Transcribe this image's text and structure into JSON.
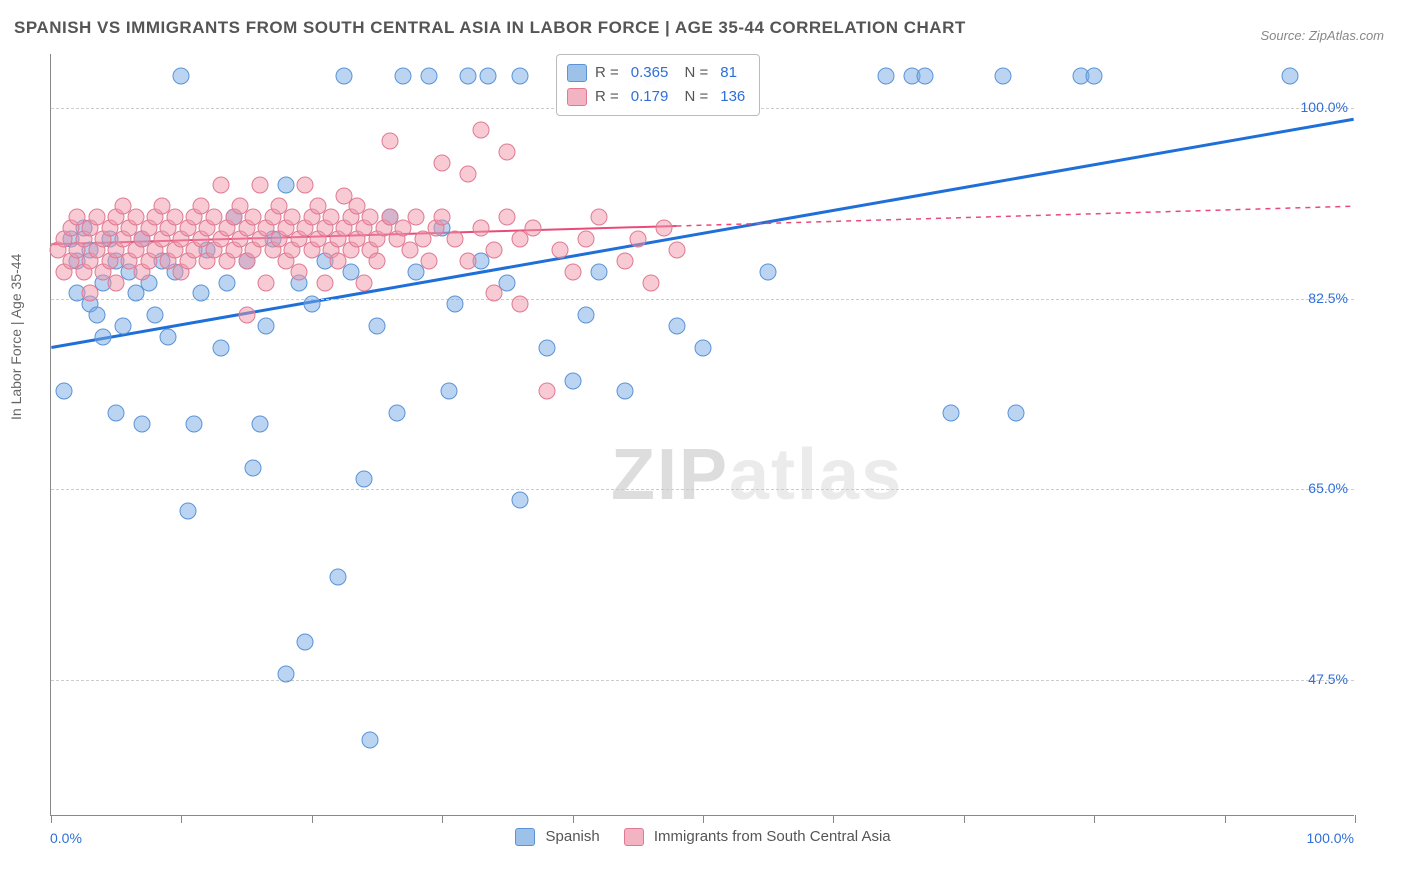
{
  "title": "SPANISH VS IMMIGRANTS FROM SOUTH CENTRAL ASIA IN LABOR FORCE | AGE 35-44 CORRELATION CHART",
  "source": "Source: ZipAtlas.com",
  "y_axis_label": "In Labor Force | Age 35-44",
  "watermark": "ZIPatlas",
  "chart": {
    "type": "scatter",
    "xlim": [
      0,
      100
    ],
    "ylim": [
      35,
      105
    ],
    "y_ticks": [
      {
        "value": 47.5,
        "label": "47.5%"
      },
      {
        "value": 65.0,
        "label": "65.0%"
      },
      {
        "value": 82.5,
        "label": "82.5%"
      },
      {
        "value": 100.0,
        "label": "100.0%"
      }
    ],
    "x_tick_positions": [
      0,
      10,
      20,
      30,
      40,
      50,
      60,
      70,
      80,
      90,
      100
    ],
    "x_tick_labels": {
      "left": "0.0%",
      "right": "100.0%"
    },
    "background_color": "#ffffff",
    "grid_color": "#cccccc",
    "axis_color": "#888888",
    "marker_size": 17,
    "series": [
      {
        "name": "Spanish",
        "color_fill": "rgba(120,170,230,0.5)",
        "color_stroke": "#5a94d6",
        "line_color": "#1f6fd8",
        "line_width": 3,
        "R": "0.365",
        "N": "81",
        "trend": {
          "x1": 0,
          "y1": 78,
          "x2": 100,
          "y2": 99,
          "dash_from_x": null
        },
        "points": [
          [
            1,
            74
          ],
          [
            1.5,
            88
          ],
          [
            2,
            86
          ],
          [
            2,
            83
          ],
          [
            2.5,
            89
          ],
          [
            3,
            87
          ],
          [
            3,
            82
          ],
          [
            3.5,
            81
          ],
          [
            4,
            84
          ],
          [
            4,
            79
          ],
          [
            4.5,
            88
          ],
          [
            5,
            86
          ],
          [
            5,
            72
          ],
          [
            5.5,
            80
          ],
          [
            6,
            85
          ],
          [
            6.5,
            83
          ],
          [
            7,
            71
          ],
          [
            7,
            88
          ],
          [
            7.5,
            84
          ],
          [
            8,
            81
          ],
          [
            8.5,
            86
          ],
          [
            9,
            79
          ],
          [
            9.5,
            85
          ],
          [
            10,
            103
          ],
          [
            10.5,
            63
          ],
          [
            11,
            71
          ],
          [
            11.5,
            83
          ],
          [
            12,
            87
          ],
          [
            13,
            78
          ],
          [
            13.5,
            84
          ],
          [
            14,
            90
          ],
          [
            15,
            86
          ],
          [
            15.5,
            67
          ],
          [
            16,
            71
          ],
          [
            16.5,
            80
          ],
          [
            17,
            88
          ],
          [
            18,
            93
          ],
          [
            18,
            48
          ],
          [
            19,
            84
          ],
          [
            19.5,
            51
          ],
          [
            20,
            82
          ],
          [
            21,
            86
          ],
          [
            22,
            57
          ],
          [
            22.5,
            103
          ],
          [
            23,
            85
          ],
          [
            24,
            66
          ],
          [
            24.5,
            42
          ],
          [
            25,
            80
          ],
          [
            26,
            90
          ],
          [
            26.5,
            72
          ],
          [
            27,
            103
          ],
          [
            28,
            85
          ],
          [
            29,
            103
          ],
          [
            30,
            89
          ],
          [
            30.5,
            74
          ],
          [
            31,
            82
          ],
          [
            32,
            103
          ],
          [
            33,
            86
          ],
          [
            33.5,
            103
          ],
          [
            35,
            84
          ],
          [
            36,
            64
          ],
          [
            36,
            103
          ],
          [
            38,
            78
          ],
          [
            40,
            75
          ],
          [
            41,
            81
          ],
          [
            42,
            85
          ],
          [
            44,
            74
          ],
          [
            46,
            103
          ],
          [
            48,
            80
          ],
          [
            50,
            78
          ],
          [
            52,
            103
          ],
          [
            55,
            85
          ],
          [
            64,
            103
          ],
          [
            66,
            103
          ],
          [
            67,
            103
          ],
          [
            69,
            72
          ],
          [
            73,
            103
          ],
          [
            74,
            72
          ],
          [
            79,
            103
          ],
          [
            80,
            103
          ],
          [
            95,
            103
          ]
        ]
      },
      {
        "name": "Immigrants from South Central Asia",
        "color_fill": "rgba(240,150,170,0.5)",
        "color_stroke": "#e07a93",
        "line_color": "#e84b7a",
        "line_width": 2,
        "R": "0.179",
        "N": "136",
        "trend": {
          "x1": 0,
          "y1": 87.5,
          "x2": 100,
          "y2": 91,
          "dash_from_x": 48
        },
        "points": [
          [
            0.5,
            87
          ],
          [
            1,
            88
          ],
          [
            1,
            85
          ],
          [
            1.5,
            89
          ],
          [
            1.5,
            86
          ],
          [
            2,
            87
          ],
          [
            2,
            90
          ],
          [
            2.5,
            88
          ],
          [
            2.5,
            85
          ],
          [
            3,
            89
          ],
          [
            3,
            86
          ],
          [
            3,
            83
          ],
          [
            3.5,
            87
          ],
          [
            3.5,
            90
          ],
          [
            4,
            88
          ],
          [
            4,
            85
          ],
          [
            4.5,
            89
          ],
          [
            4.5,
            86
          ],
          [
            5,
            87
          ],
          [
            5,
            90
          ],
          [
            5,
            84
          ],
          [
            5.5,
            88
          ],
          [
            5.5,
            91
          ],
          [
            6,
            89
          ],
          [
            6,
            86
          ],
          [
            6.5,
            87
          ],
          [
            6.5,
            90
          ],
          [
            7,
            88
          ],
          [
            7,
            85
          ],
          [
            7.5,
            89
          ],
          [
            7.5,
            86
          ],
          [
            8,
            90
          ],
          [
            8,
            87
          ],
          [
            8.5,
            88
          ],
          [
            8.5,
            91
          ],
          [
            9,
            89
          ],
          [
            9,
            86
          ],
          [
            9.5,
            87
          ],
          [
            9.5,
            90
          ],
          [
            10,
            88
          ],
          [
            10,
            85
          ],
          [
            10.5,
            89
          ],
          [
            10.5,
            86
          ],
          [
            11,
            90
          ],
          [
            11,
            87
          ],
          [
            11.5,
            88
          ],
          [
            11.5,
            91
          ],
          [
            12,
            89
          ],
          [
            12,
            86
          ],
          [
            12.5,
            87
          ],
          [
            12.5,
            90
          ],
          [
            13,
            88
          ],
          [
            13,
            93
          ],
          [
            13.5,
            89
          ],
          [
            13.5,
            86
          ],
          [
            14,
            90
          ],
          [
            14,
            87
          ],
          [
            14.5,
            88
          ],
          [
            14.5,
            91
          ],
          [
            15,
            89
          ],
          [
            15,
            86
          ],
          [
            15,
            81
          ],
          [
            15.5,
            87
          ],
          [
            15.5,
            90
          ],
          [
            16,
            88
          ],
          [
            16,
            93
          ],
          [
            16.5,
            89
          ],
          [
            16.5,
            84
          ],
          [
            17,
            90
          ],
          [
            17,
            87
          ],
          [
            17.5,
            88
          ],
          [
            17.5,
            91
          ],
          [
            18,
            89
          ],
          [
            18,
            86
          ],
          [
            18.5,
            87
          ],
          [
            18.5,
            90
          ],
          [
            19,
            88
          ],
          [
            19,
            85
          ],
          [
            19.5,
            89
          ],
          [
            19.5,
            93
          ],
          [
            20,
            90
          ],
          [
            20,
            87
          ],
          [
            20.5,
            88
          ],
          [
            20.5,
            91
          ],
          [
            21,
            89
          ],
          [
            21,
            84
          ],
          [
            21.5,
            87
          ],
          [
            21.5,
            90
          ],
          [
            22,
            88
          ],
          [
            22,
            86
          ],
          [
            22.5,
            89
          ],
          [
            22.5,
            92
          ],
          [
            23,
            90
          ],
          [
            23,
            87
          ],
          [
            23.5,
            88
          ],
          [
            23.5,
            91
          ],
          [
            24,
            89
          ],
          [
            24,
            84
          ],
          [
            24.5,
            87
          ],
          [
            24.5,
            90
          ],
          [
            25,
            88
          ],
          [
            25,
            86
          ],
          [
            25.5,
            89
          ],
          [
            26,
            90
          ],
          [
            26,
            97
          ],
          [
            26.5,
            88
          ],
          [
            27,
            89
          ],
          [
            27.5,
            87
          ],
          [
            28,
            90
          ],
          [
            28.5,
            88
          ],
          [
            29,
            86
          ],
          [
            29.5,
            89
          ],
          [
            30,
            90
          ],
          [
            30,
            95
          ],
          [
            31,
            88
          ],
          [
            32,
            86
          ],
          [
            32,
            94
          ],
          [
            33,
            89
          ],
          [
            33,
            98
          ],
          [
            34,
            87
          ],
          [
            34,
            83
          ],
          [
            35,
            90
          ],
          [
            35,
            96
          ],
          [
            36,
            88
          ],
          [
            36,
            82
          ],
          [
            37,
            89
          ],
          [
            38,
            74
          ],
          [
            39,
            87
          ],
          [
            40,
            85
          ],
          [
            41,
            88
          ],
          [
            42,
            90
          ],
          [
            44,
            86
          ],
          [
            45,
            88
          ],
          [
            46,
            84
          ],
          [
            47,
            89
          ],
          [
            48,
            87
          ]
        ]
      }
    ]
  },
  "legend_top": {
    "box_border": "#bbbbbb",
    "square_colors": [
      "#9cc2ea",
      "#f2b3c2"
    ]
  },
  "legend_bottom": [
    {
      "color": "#9cc2ea",
      "label": "Spanish"
    },
    {
      "color": "#f2b3c2",
      "label": "Immigrants from South Central Asia"
    }
  ]
}
